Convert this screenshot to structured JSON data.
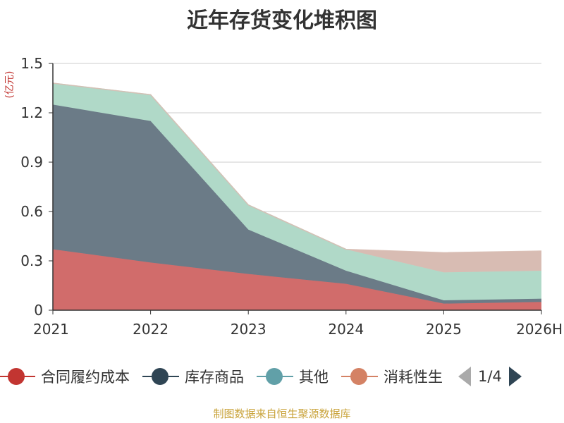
{
  "chart_data": {
    "type": "area",
    "title": "近年存货变化堆积图",
    "ylabel": "(亿元)",
    "xlabel": "",
    "categories": [
      "2021",
      "2022",
      "2023",
      "2024",
      "2025",
      "2026H"
    ],
    "ylim": [
      0,
      1.5
    ],
    "yticks": [
      "0",
      "0.3",
      "0.6",
      "0.9",
      "1.2",
      "1.5"
    ],
    "stacked": true,
    "grid": true,
    "legend_position": "bottom",
    "series": [
      {
        "name": "合同履约成本",
        "values": [
          0.37,
          0.29,
          0.22,
          0.16,
          0.04,
          0.05
        ],
        "color": "#c23531"
      },
      {
        "name": "库存商品",
        "values": [
          0.88,
          0.86,
          0.27,
          0.08,
          0.02,
          0.02
        ],
        "color": "#2f4554"
      },
      {
        "name": "其他",
        "values": [
          0.13,
          0.16,
          0.15,
          0.13,
          0.17,
          0.17
        ],
        "color": "#61a0a8"
      },
      {
        "name": "消耗性生",
        "values": [
          0.0,
          0.0,
          0.0,
          0.0,
          0.12,
          0.12
        ],
        "color": "#d48265"
      }
    ],
    "area_fills": [
      "#d16c6b",
      "#6b7b87",
      "#b0d9c8",
      "#d8bcb3"
    ],
    "pager": "1/4",
    "source": "制图数据来自恒生聚源数据库"
  }
}
